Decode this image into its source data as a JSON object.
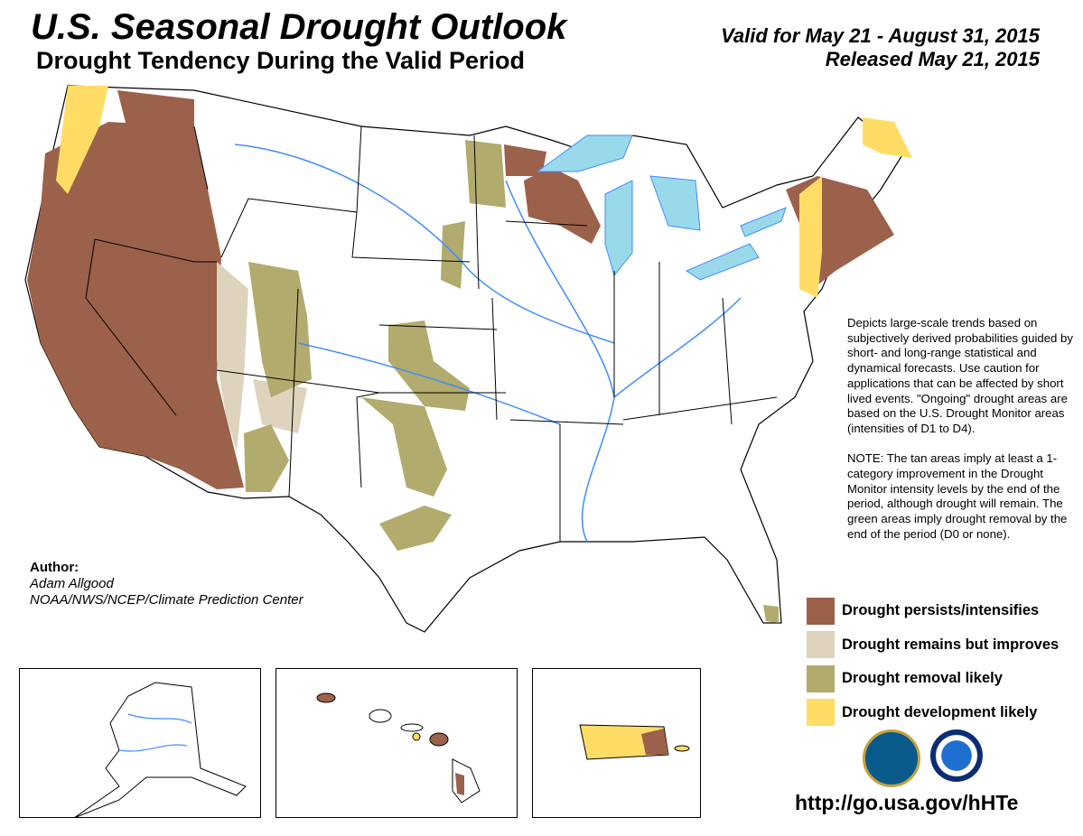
{
  "header": {
    "title": "U.S. Seasonal Drought Outlook",
    "subtitle": "Drought Tendency During the Valid Period",
    "valid_period": "Valid for May 21 - August 31, 2015",
    "released": "Released May 21, 2015"
  },
  "note": {
    "paragraph1": "Depicts large-scale trends based on subjectively derived probabilities guided by short- and long-range statistical and dynamical forecasts. Use caution for applications that can be affected by short lived events. \"Ongoing\" drought areas are based on the U.S. Drought Monitor areas (intensities of D1 to D4).",
    "paragraph2": "NOTE: The tan areas imply at least a 1-category improvement in the Drought Monitor intensity levels by the end of the period, although drought will remain. The green areas imply drought removal by the end of the period (D0 or none)."
  },
  "legend": [
    {
      "label": "Drought persists/intensifies",
      "color": "#9c614a"
    },
    {
      "label": "Drought remains but improves",
      "color": "#ded3bd"
    },
    {
      "label": "Drought removal likely",
      "color": "#b1ab6d"
    },
    {
      "label": "Drought development likely",
      "color": "#ffdc66"
    }
  ],
  "author": {
    "heading": "Author:",
    "name": "Adam Allgood",
    "organization": "NOAA/NWS/NCEP/Climate Prediction Center"
  },
  "insets": [
    "Alaska",
    "Hawaii",
    "Puerto Rico"
  ],
  "colors": {
    "water": "#99d9ea",
    "river": "#3f8cff",
    "border": "#000000"
  },
  "footer": {
    "url": "http://go.usa.gov/hHTe"
  }
}
